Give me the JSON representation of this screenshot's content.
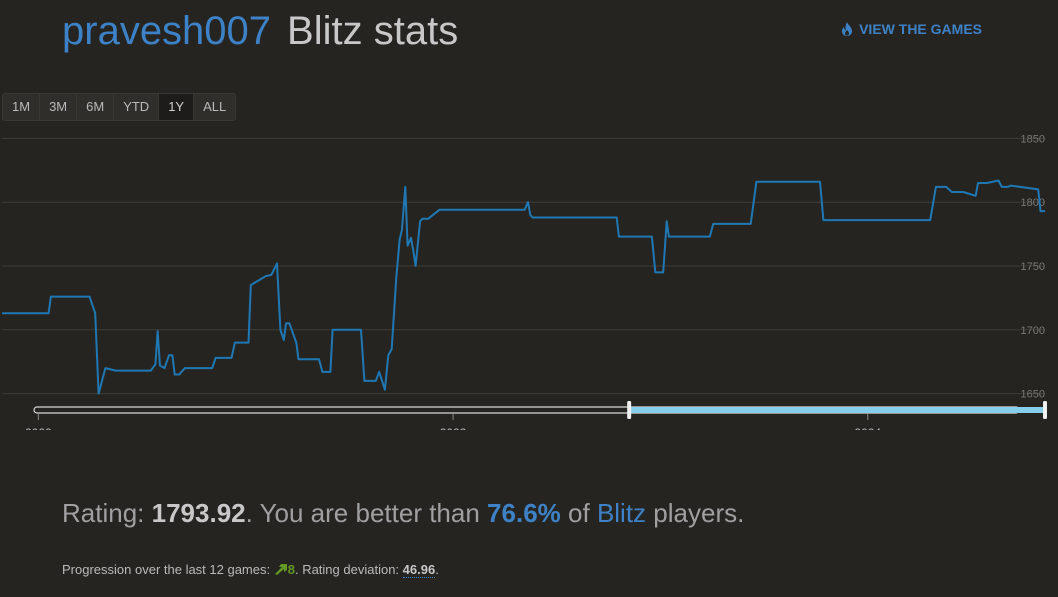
{
  "header": {
    "username": "pravesh007",
    "title": "Blitz stats",
    "view_games_label": "VIEW THE GAMES"
  },
  "range_buttons": [
    "1M",
    "3M",
    "6M",
    "YTD",
    "1Y",
    "ALL"
  ],
  "active_range": "1Y",
  "summary": {
    "rating_label": "Rating:",
    "rating_value": "1793.92",
    "better_than_text": ". You are better than",
    "percentile": "76.6%",
    "of_text": "of",
    "variant": "Blitz",
    "players_text": "players."
  },
  "progression": {
    "label": "Progression over the last 12 games:",
    "value": "8",
    "rd_label": ". Rating deviation:",
    "rd_value": "46.96",
    "end": "."
  },
  "colors": {
    "accent": "#3d82c6",
    "line": "#1f78b4",
    "navigator": "#87ceeb",
    "positive": "#629924"
  },
  "chart_data": {
    "type": "line",
    "y_ticks": [
      1650,
      1700,
      1750,
      1800,
      1850
    ],
    "ylim": [
      1645,
      1855
    ],
    "x_ticks": [
      "2022",
      "2023",
      "2024"
    ],
    "xlim": [
      "2021-11-30",
      "2024-06-05"
    ],
    "navigator_selection": [
      "2023-06-05",
      "2024-06-05"
    ],
    "series": [
      {
        "x": [
          "2021-11-30",
          "2022-01-10",
          "2022-01-12",
          "2022-02-15",
          "2022-02-20",
          "2022-02-23",
          "2022-03-01",
          "2022-03-10",
          "2022-04-10",
          "2022-04-14",
          "2022-04-16",
          "2022-04-18",
          "2022-04-22",
          "2022-04-26",
          "2022-04-29",
          "2022-05-01",
          "2022-05-05",
          "2022-05-10",
          "2022-06-03",
          "2022-06-06",
          "2022-06-20",
          "2022-06-23",
          "2022-07-05",
          "2022-07-07",
          "2022-07-20",
          "2022-07-25",
          "2022-07-30",
          "2022-08-02",
          "2022-08-05",
          "2022-08-07",
          "2022-08-10",
          "2022-08-16",
          "2022-08-18",
          "2022-09-05",
          "2022-09-08",
          "2022-09-15",
          "2022-09-17",
          "2022-10-12",
          "2022-10-15",
          "2022-10-25",
          "2022-10-28",
          "2022-11-02",
          "2022-11-05",
          "2022-11-08",
          "2022-11-12",
          "2022-11-15",
          "2022-11-17",
          "2022-11-20",
          "2022-11-22",
          "2022-11-25",
          "2022-11-27",
          "2022-11-29",
          "2022-12-03",
          "2022-12-05",
          "2022-12-10",
          "2022-12-20",
          "2022-12-22",
          "2023-03-05",
          "2023-03-08",
          "2023-03-10",
          "2023-03-12",
          "2023-05-25",
          "2023-05-27",
          "2023-06-25",
          "2023-06-28",
          "2023-07-05",
          "2023-07-08",
          "2023-07-10",
          "2023-08-15",
          "2023-08-18",
          "2023-09-20",
          "2023-09-25",
          "2023-11-20",
          "2023-11-23",
          "2024-02-25",
          "2024-03-01",
          "2024-03-10",
          "2024-03-15",
          "2024-03-25",
          "2024-04-05",
          "2024-04-07",
          "2024-04-15",
          "2024-04-25",
          "2024-04-28",
          "2024-05-03",
          "2024-05-06",
          "2024-05-30",
          "2024-06-01",
          "2024-06-05"
        ],
        "y": [
          1713,
          1713,
          1726,
          1726,
          1713,
          1650,
          1670,
          1668,
          1668,
          1673,
          1699,
          1672,
          1670,
          1680,
          1680,
          1665,
          1665,
          1670,
          1670,
          1678,
          1678,
          1690,
          1690,
          1735,
          1742,
          1743,
          1752,
          1700,
          1692,
          1705,
          1705,
          1690,
          1677,
          1677,
          1667,
          1667,
          1700,
          1700,
          1660,
          1660,
          1667,
          1653,
          1680,
          1685,
          1740,
          1771,
          1778,
          1812,
          1766,
          1772,
          1762,
          1750,
          1785,
          1787,
          1787,
          1794,
          1794,
          1794,
          1800,
          1790,
          1788,
          1788,
          1773,
          1773,
          1745,
          1745,
          1785,
          1773,
          1773,
          1783,
          1783,
          1816,
          1816,
          1786,
          1786,
          1812,
          1812,
          1808,
          1808,
          1805,
          1815,
          1815,
          1817,
          1812,
          1812,
          1813,
          1810,
          1793,
          1793
        ]
      }
    ]
  }
}
